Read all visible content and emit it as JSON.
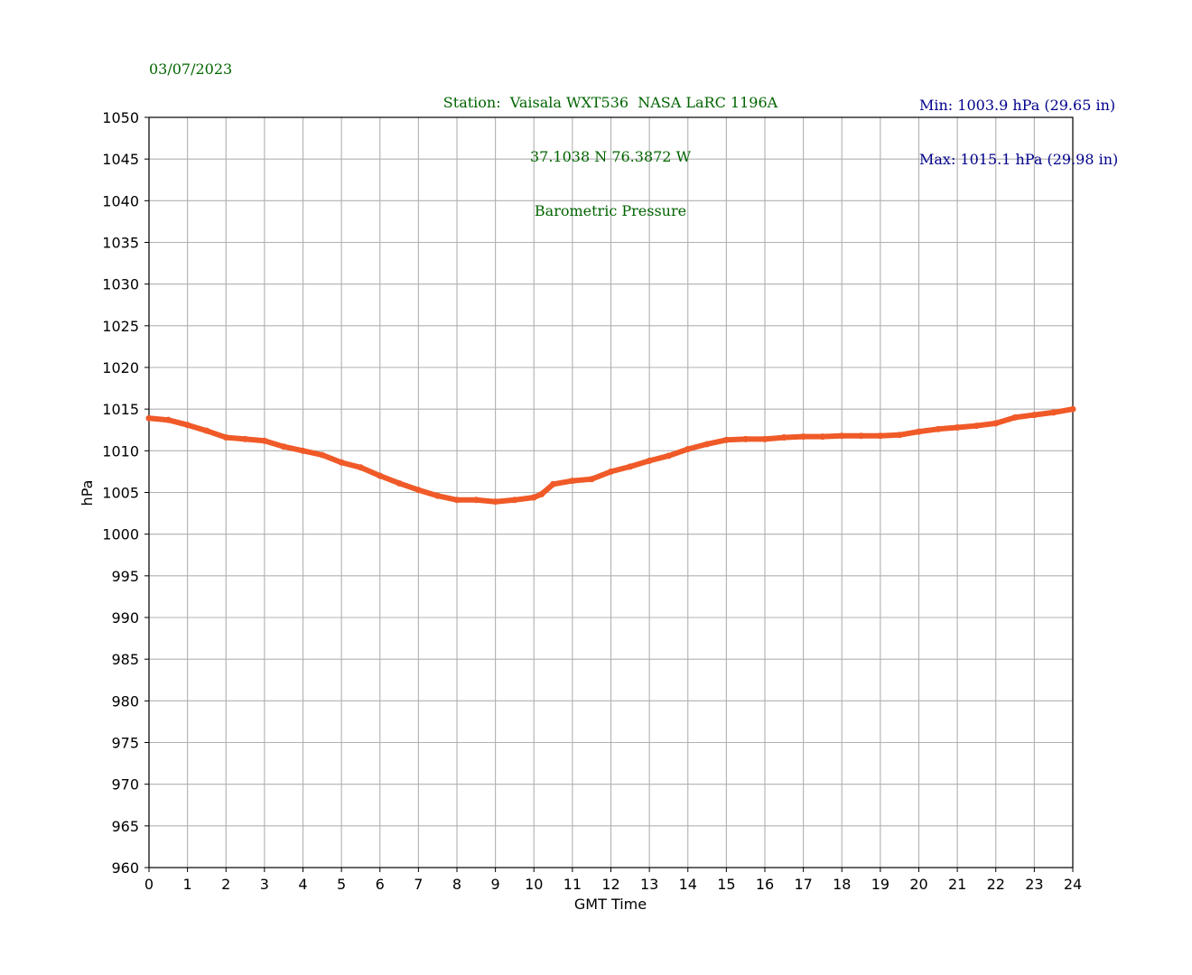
{
  "header": {
    "date": "03/07/2023",
    "station_lines": [
      "Station:  Vaisala WXT536  NASA LaRC 1196A",
      "37.1038 N 76.3872 W",
      "Barometric Pressure"
    ],
    "min_text": "Min: 1003.9 hPa (29.65 in)",
    "max_text": "Max: 1015.1 hPa (29.98 in)"
  },
  "colors": {
    "line": "#f05a28",
    "grid": "#b0b0b0",
    "header_green": "#006400",
    "header_navy": "#00008b"
  },
  "chart_data": {
    "type": "line",
    "title": "Barometric Pressure",
    "xlabel": "GMT Time",
    "ylabel": "hPa",
    "xlim": [
      0,
      24
    ],
    "ylim": [
      960,
      1050
    ],
    "xticks": [
      0,
      1,
      2,
      3,
      4,
      5,
      6,
      7,
      8,
      9,
      10,
      11,
      12,
      13,
      14,
      15,
      16,
      17,
      18,
      19,
      20,
      21,
      22,
      23,
      24
    ],
    "yticks": [
      960,
      965,
      970,
      975,
      980,
      985,
      990,
      995,
      1000,
      1005,
      1010,
      1015,
      1020,
      1025,
      1030,
      1035,
      1040,
      1045,
      1050
    ],
    "grid": true,
    "series": [
      {
        "x": [
          0,
          0.5,
          1,
          1.5,
          2,
          2.5,
          3,
          3.5,
          4,
          4.5,
          5,
          5.5,
          6,
          6.5,
          7,
          7.5,
          8,
          8.5,
          9,
          9.5,
          10,
          10.2,
          10.5,
          11,
          11.5,
          12,
          12.5,
          13,
          13.5,
          14,
          14.5,
          15,
          15.5,
          16,
          16.5,
          17,
          17.5,
          18,
          18.5,
          19,
          19.5,
          20,
          20.5,
          21,
          21.5,
          22,
          22.5,
          23,
          23.5,
          24
        ],
        "y": [
          1013.9,
          1013.7,
          1013.1,
          1012.4,
          1011.6,
          1011.4,
          1011.2,
          1010.5,
          1010.0,
          1009.5,
          1008.6,
          1008.0,
          1007.0,
          1006.1,
          1005.3,
          1004.6,
          1004.1,
          1004.1,
          1003.9,
          1004.1,
          1004.4,
          1004.8,
          1006.0,
          1006.4,
          1006.6,
          1007.5,
          1008.1,
          1008.8,
          1009.4,
          1010.2,
          1010.8,
          1011.3,
          1011.4,
          1011.4,
          1011.6,
          1011.7,
          1011.7,
          1011.8,
          1011.8,
          1011.8,
          1011.9,
          1012.3,
          1012.6,
          1012.8,
          1013.0,
          1013.3,
          1014.0,
          1014.3,
          1014.6,
          1015.0
        ]
      }
    ]
  }
}
